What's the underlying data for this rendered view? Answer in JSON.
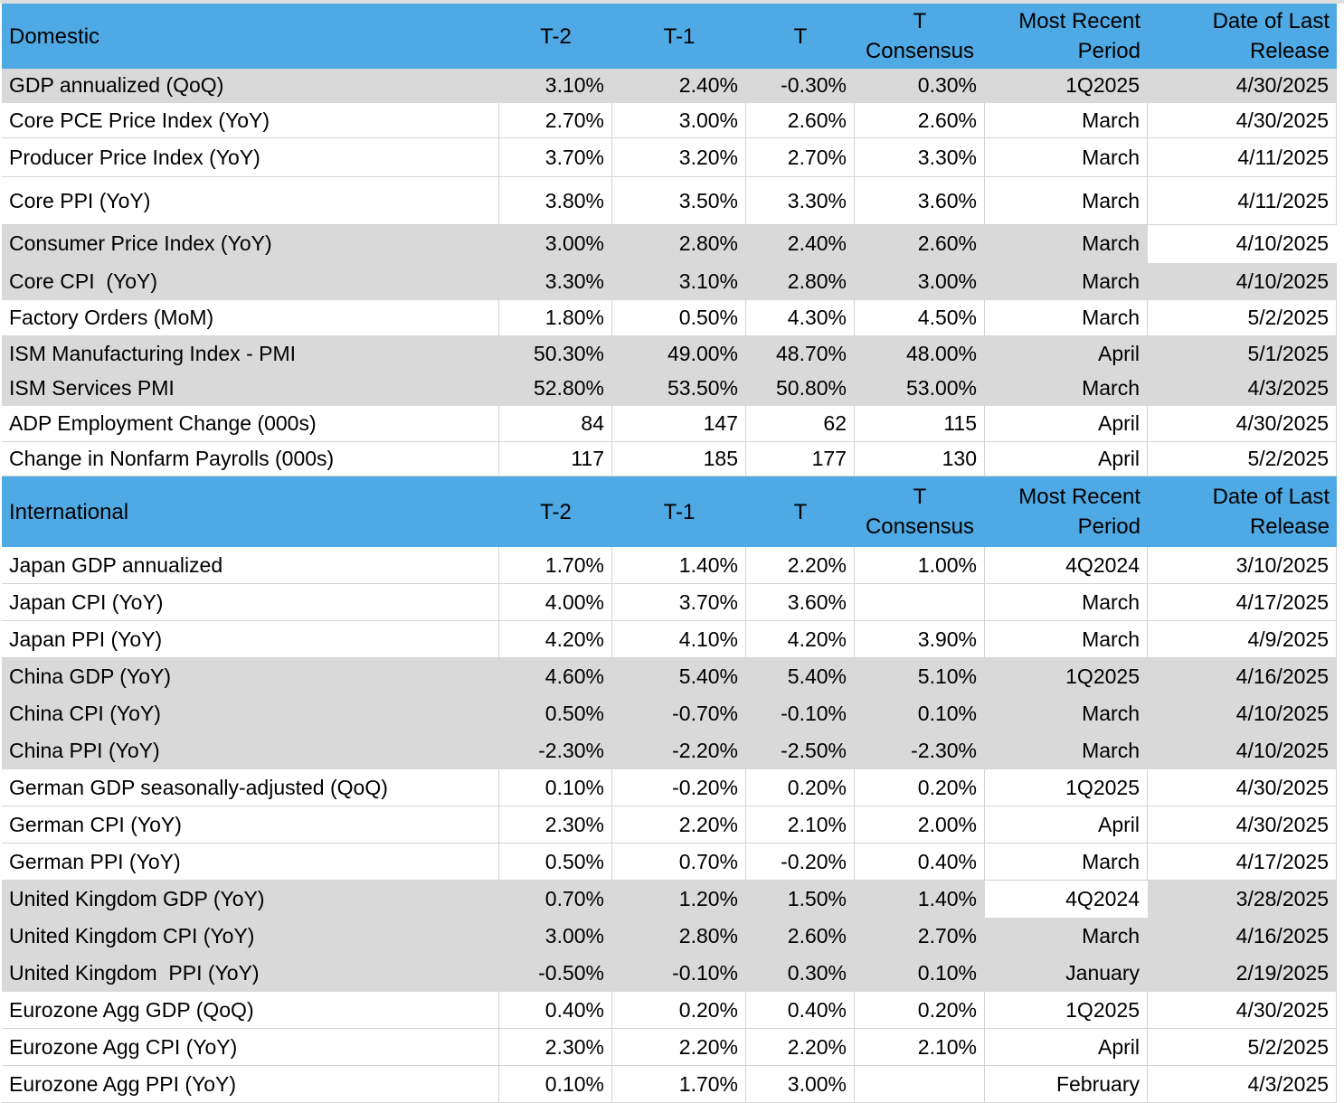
{
  "colors": {
    "section_header_bg": "#4ea9e4",
    "band_gray": "#d9d9d9",
    "band_white": "#ffffff",
    "gridline": "#d4d4d4",
    "text": "#000000"
  },
  "chart_data": [
    {
      "type": "table",
      "title": "Domestic",
      "columns": {
        "t2": "T-2",
        "t1": "T-1",
        "t": "T",
        "consensus": "T\nConsensus",
        "period": "Most Recent\nPeriod",
        "release": "Date of Last\nRelease"
      },
      "rows": [
        {
          "label": "GDP annualized (QoQ)",
          "t2": "3.10%",
          "t1": "2.40%",
          "t": "-0.30%",
          "consensus": "0.30%",
          "period": "1Q2025",
          "release": "4/30/2025",
          "shade": "gray",
          "white_cells": []
        },
        {
          "label": "Core PCE Price Index (YoY)",
          "t2": "2.70%",
          "t1": "3.00%",
          "t": "2.60%",
          "consensus": "2.60%",
          "period": "March",
          "release": "4/30/2025",
          "shade": "white",
          "white_cells": []
        },
        {
          "label": "Producer Price Index (YoY)",
          "t2": "3.70%",
          "t1": "3.20%",
          "t": "2.70%",
          "consensus": "3.30%",
          "period": "March",
          "release": "4/11/2025",
          "shade": "white",
          "white_cells": []
        },
        {
          "label": "Core PPI (YoY)",
          "t2": "3.80%",
          "t1": "3.50%",
          "t": "3.30%",
          "consensus": "3.60%",
          "period": "March",
          "release": "4/11/2025",
          "shade": "white",
          "white_cells": []
        },
        {
          "label": "Consumer Price Index (YoY)",
          "t2": "3.00%",
          "t1": "2.80%",
          "t": "2.40%",
          "consensus": "2.60%",
          "period": "March",
          "release": "4/10/2025",
          "shade": "gray",
          "white_cells": [
            "release"
          ]
        },
        {
          "label": "Core CPI  (YoY)",
          "t2": "3.30%",
          "t1": "3.10%",
          "t": "2.80%",
          "consensus": "3.00%",
          "period": "March",
          "release": "4/10/2025",
          "shade": "gray",
          "white_cells": []
        },
        {
          "label": "Factory Orders (MoM)",
          "t2": "1.80%",
          "t1": "0.50%",
          "t": "4.30%",
          "consensus": "4.50%",
          "period": "March",
          "release": "5/2/2025",
          "shade": "white",
          "white_cells": []
        },
        {
          "label": "ISM Manufacturing Index - PMI",
          "t2": "50.30%",
          "t1": "49.00%",
          "t": "48.70%",
          "consensus": "48.00%",
          "period": "April",
          "release": "5/1/2025",
          "shade": "gray",
          "white_cells": []
        },
        {
          "label": "ISM Services PMI",
          "t2": "52.80%",
          "t1": "53.50%",
          "t": "50.80%",
          "consensus": "53.00%",
          "period": "March",
          "release": "4/3/2025",
          "shade": "gray",
          "white_cells": []
        },
        {
          "label": "ADP Employment Change (000s)",
          "t2": "84",
          "t1": "147",
          "t": "62",
          "consensus": "115",
          "period": "April",
          "release": "4/30/2025",
          "shade": "white",
          "white_cells": []
        },
        {
          "label": "Change in Nonfarm Payrolls (000s)",
          "t2": "117",
          "t1": "185",
          "t": "177",
          "consensus": "130",
          "period": "April",
          "release": "5/2/2025",
          "shade": "white",
          "white_cells": []
        }
      ]
    },
    {
      "type": "table",
      "title": "International",
      "columns": {
        "t2": "T-2",
        "t1": "T-1",
        "t": "T",
        "consensus": "T\nConsensus",
        "period": "Most Recent\nPeriod",
        "release": "Date of Last\nRelease"
      },
      "rows": [
        {
          "label": "Japan GDP annualized",
          "t2": "1.70%",
          "t1": "1.40%",
          "t": "2.20%",
          "consensus": "1.00%",
          "period": "4Q2024",
          "release": "3/10/2025",
          "shade": "white",
          "white_cells": []
        },
        {
          "label": "Japan CPI (YoY)",
          "t2": "4.00%",
          "t1": "3.70%",
          "t": "3.60%",
          "consensus": "",
          "period": "March",
          "release": "4/17/2025",
          "shade": "white",
          "white_cells": []
        },
        {
          "label": "Japan PPI (YoY)",
          "t2": "4.20%",
          "t1": "4.10%",
          "t": "4.20%",
          "consensus": "3.90%",
          "period": "March",
          "release": "4/9/2025",
          "shade": "white",
          "white_cells": []
        },
        {
          "label": "China GDP (YoY)",
          "t2": "4.60%",
          "t1": "5.40%",
          "t": "5.40%",
          "consensus": "5.10%",
          "period": "1Q2025",
          "release": "4/16/2025",
          "shade": "gray",
          "white_cells": []
        },
        {
          "label": "China CPI (YoY)",
          "t2": "0.50%",
          "t1": "-0.70%",
          "t": "-0.10%",
          "consensus": "0.10%",
          "period": "March",
          "release": "4/10/2025",
          "shade": "gray",
          "white_cells": []
        },
        {
          "label": "China PPI (YoY)",
          "t2": "-2.30%",
          "t1": "-2.20%",
          "t": "-2.50%",
          "consensus": "-2.30%",
          "period": "March",
          "release": "4/10/2025",
          "shade": "gray",
          "white_cells": []
        },
        {
          "label": "German GDP seasonally-adjusted (QoQ)",
          "t2": "0.10%",
          "t1": "-0.20%",
          "t": "0.20%",
          "consensus": "0.20%",
          "period": "1Q2025",
          "release": "4/30/2025",
          "shade": "white",
          "white_cells": []
        },
        {
          "label": "German CPI (YoY)",
          "t2": "2.30%",
          "t1": "2.20%",
          "t": "2.10%",
          "consensus": "2.00%",
          "period": "April",
          "release": "4/30/2025",
          "shade": "white",
          "white_cells": []
        },
        {
          "label": "German PPI (YoY)",
          "t2": "0.50%",
          "t1": "0.70%",
          "t": "-0.20%",
          "consensus": "0.40%",
          "period": "March",
          "release": "4/17/2025",
          "shade": "white",
          "white_cells": []
        },
        {
          "label": "United Kingdom GDP (YoY)",
          "t2": "0.70%",
          "t1": "1.20%",
          "t": "1.50%",
          "consensus": "1.40%",
          "period": "4Q2024",
          "release": "3/28/2025",
          "shade": "gray",
          "white_cells": [
            "period"
          ]
        },
        {
          "label": "United Kingdom CPI (YoY)",
          "t2": "3.00%",
          "t1": "2.80%",
          "t": "2.60%",
          "consensus": "2.70%",
          "period": "March",
          "release": "4/16/2025",
          "shade": "gray",
          "white_cells": []
        },
        {
          "label": "United Kingdom  PPI (YoY)",
          "t2": "-0.50%",
          "t1": "-0.10%",
          "t": "0.30%",
          "consensus": "0.10%",
          "period": "January",
          "release": "2/19/2025",
          "shade": "gray",
          "white_cells": []
        },
        {
          "label": "Eurozone Agg GDP (QoQ)",
          "t2": "0.40%",
          "t1": "0.20%",
          "t": "0.40%",
          "consensus": "0.20%",
          "period": "1Q2025",
          "release": "4/30/2025",
          "shade": "white",
          "white_cells": []
        },
        {
          "label": "Eurozone Agg CPI (YoY)",
          "t2": "2.30%",
          "t1": "2.20%",
          "t": "2.20%",
          "consensus": "2.10%",
          "period": "April",
          "release": "5/2/2025",
          "shade": "white",
          "white_cells": []
        },
        {
          "label": "Eurozone Agg PPI (YoY)",
          "t2": "0.10%",
          "t1": "1.70%",
          "t": "3.00%",
          "consensus": "",
          "period": "February",
          "release": "4/3/2025",
          "shade": "white",
          "white_cells": []
        }
      ]
    }
  ]
}
